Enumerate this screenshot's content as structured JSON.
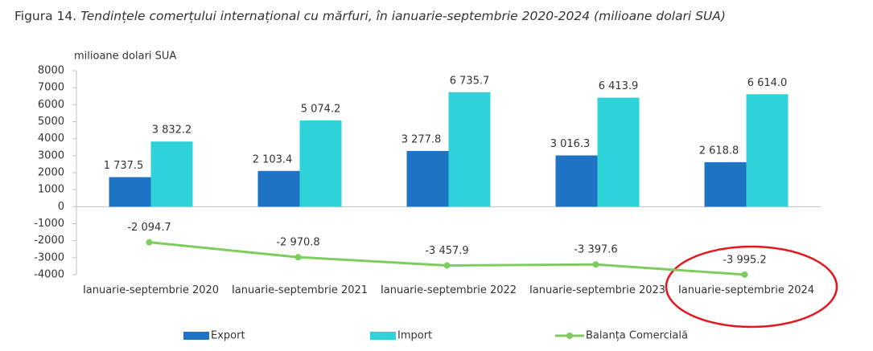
{
  "chart_data": {
    "type": "bar_line",
    "figure_label": "Figura 14.",
    "title": "Tendințele comerțului internațional cu mărfuri, în ianuarie-septembrie 2020-2024 (milioane dolari SUA)",
    "y_label": "milioane dolari SUA",
    "categories": [
      "Ianuarie-septembrie 2020",
      "Ianuarie-septembrie 2021",
      "Ianuarie-septembrie 2022",
      "Ianuarie-septembrie 2023",
      "Ianuarie-septembrie 2024"
    ],
    "series": [
      {
        "name": "Export",
        "type": "bar",
        "color": "#1f73c4",
        "values": [
          1737.5,
          2103.4,
          3277.8,
          3016.3,
          2618.8
        ],
        "value_labels": [
          "1 737.5",
          "2 103.4",
          "3 277.8",
          "3 016.3",
          "2 618.8"
        ]
      },
      {
        "name": "Import",
        "type": "bar",
        "color": "#2dd3d8",
        "values": [
          3832.2,
          5074.2,
          6735.7,
          6413.9,
          6614.0
        ],
        "value_labels": [
          "3 832.2",
          "5 074.2",
          "6 735.7",
          "6 413.9",
          "6 614.0"
        ]
      },
      {
        "name": "Balanța Comercială",
        "type": "line",
        "color": "#7dcd5e",
        "values": [
          -2094.7,
          -2970.8,
          -3457.9,
          -3397.6,
          -3995.2
        ],
        "value_labels": [
          "-2 094.7",
          "-2 970.8",
          "-3 457.9",
          "-3 397.6",
          "-3 995.2"
        ]
      }
    ],
    "ylim": [
      -4000,
      8000
    ],
    "yticks": [
      -4000,
      -3000,
      -2000,
      -1000,
      0,
      1000,
      2000,
      3000,
      4000,
      5000,
      6000,
      7000,
      8000
    ],
    "grid": false
  }
}
